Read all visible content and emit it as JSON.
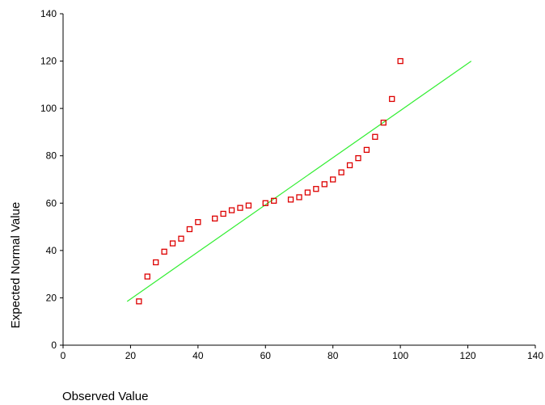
{
  "chart_data": {
    "type": "scatter",
    "title": "",
    "xlabel": "Observed Value",
    "ylabel": "Expected Normal Value",
    "xlim": [
      0,
      140
    ],
    "ylim": [
      0,
      140
    ],
    "xticks": [
      "0",
      "20",
      "40",
      "60",
      "80",
      "100",
      "120",
      "140"
    ],
    "yticks": [
      "0",
      "20",
      "40",
      "60",
      "80",
      "100",
      "120",
      "140"
    ],
    "grid": false,
    "legend": "none",
    "points": [
      {
        "x": 22.5,
        "y": 18.5
      },
      {
        "x": 25,
        "y": 29
      },
      {
        "x": 27.5,
        "y": 35
      },
      {
        "x": 30,
        "y": 39.5
      },
      {
        "x": 32.5,
        "y": 43
      },
      {
        "x": 35,
        "y": 45
      },
      {
        "x": 37.5,
        "y": 49
      },
      {
        "x": 40,
        "y": 52
      },
      {
        "x": 45,
        "y": 53.5
      },
      {
        "x": 47.5,
        "y": 55.5
      },
      {
        "x": 50,
        "y": 57
      },
      {
        "x": 52.5,
        "y": 58
      },
      {
        "x": 55,
        "y": 59
      },
      {
        "x": 60,
        "y": 60
      },
      {
        "x": 62.5,
        "y": 61
      },
      {
        "x": 67.5,
        "y": 61.5
      },
      {
        "x": 70,
        "y": 62.5
      },
      {
        "x": 72.5,
        "y": 64.5
      },
      {
        "x": 75,
        "y": 66
      },
      {
        "x": 77.5,
        "y": 68
      },
      {
        "x": 80,
        "y": 70
      },
      {
        "x": 82.5,
        "y": 73
      },
      {
        "x": 85,
        "y": 76
      },
      {
        "x": 87.5,
        "y": 79
      },
      {
        "x": 90,
        "y": 82.5
      },
      {
        "x": 92.5,
        "y": 88
      },
      {
        "x": 95,
        "y": 94
      },
      {
        "x": 97.5,
        "y": 104
      },
      {
        "x": 100,
        "y": 120
      }
    ],
    "reference_line": {
      "x": [
        19,
        121
      ],
      "y": [
        18.5,
        120
      ]
    },
    "colors": {
      "points": "#dd0000",
      "line": "#33ee33",
      "axis": "#000000"
    }
  }
}
